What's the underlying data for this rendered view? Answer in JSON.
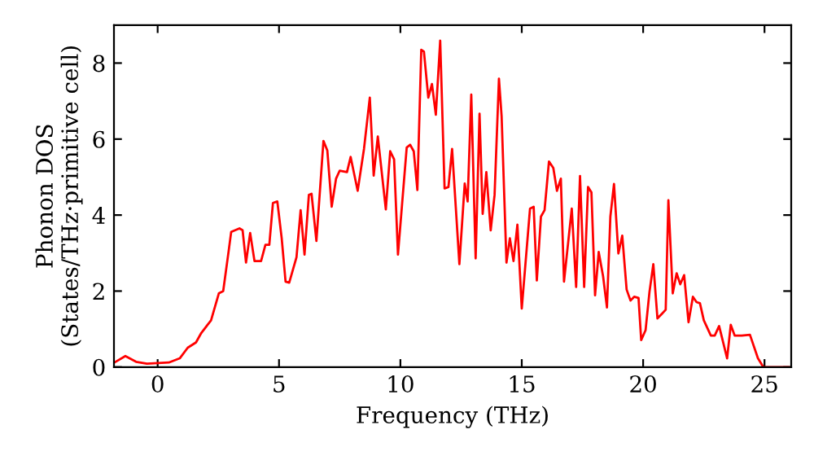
{
  "chart_data": {
    "type": "line",
    "xlabel": "Frequency (THz)",
    "ylabel": "Phonon DOS\n(States/THz·primitive cell)",
    "x": [
      -1.78,
      -1.33,
      -0.89,
      -0.44,
      0.46,
      0.91,
      1.24,
      1.58,
      1.8,
      2.2,
      2.52,
      2.7,
      2.92,
      3.03,
      3.37,
      3.5,
      3.64,
      3.81,
      3.99,
      4.26,
      4.44,
      4.6,
      4.75,
      4.93,
      5.11,
      5.27,
      5.42,
      5.72,
      5.89,
      6.05,
      6.23,
      6.34,
      6.54,
      6.83,
      6.99,
      7.17,
      7.35,
      7.5,
      7.8,
      7.95,
      8.24,
      8.5,
      8.74,
      8.9,
      9.07,
      9.4,
      9.58,
      9.74,
      9.9,
      10.26,
      10.4,
      10.55,
      10.7,
      10.86,
      10.97,
      11.15,
      11.3,
      11.46,
      11.64,
      11.82,
      11.98,
      12.13,
      12.43,
      12.65,
      12.77,
      12.92,
      13.1,
      13.26,
      13.39,
      13.54,
      13.72,
      13.88,
      14.06,
      14.17,
      14.37,
      14.51,
      14.66,
      14.82,
      15.0,
      15.34,
      15.49,
      15.62,
      15.79,
      15.94,
      16.12,
      16.3,
      16.45,
      16.61,
      16.74,
      17.06,
      17.24,
      17.4,
      17.57,
      17.73,
      17.87,
      18.02,
      18.17,
      18.35,
      18.51,
      18.65,
      18.8,
      18.98,
      19.14,
      19.32,
      19.48,
      19.63,
      19.81,
      19.92,
      20.1,
      20.26,
      20.42,
      20.59,
      20.77,
      20.93,
      21.04,
      21.22,
      21.38,
      21.53,
      21.69,
      21.87,
      22.05,
      22.2,
      22.34,
      22.5,
      22.79,
      22.95,
      23.13,
      23.46,
      23.61,
      23.77,
      24.06,
      24.4,
      24.73,
      24.95,
      26.0
    ],
    "series": [
      {
        "color": "#ff0000",
        "values": [
          0.12,
          0.29,
          0.14,
          0.09,
          0.12,
          0.23,
          0.51,
          0.65,
          0.9,
          1.23,
          1.94,
          2.0,
          3.03,
          3.56,
          3.65,
          3.6,
          2.75,
          3.53,
          2.79,
          2.79,
          3.22,
          3.22,
          4.32,
          4.36,
          3.39,
          2.25,
          2.22,
          2.89,
          4.13,
          2.96,
          4.53,
          4.56,
          3.32,
          5.95,
          5.7,
          4.22,
          4.96,
          5.17,
          5.13,
          5.53,
          4.64,
          5.74,
          7.09,
          5.04,
          6.07,
          4.15,
          5.68,
          5.47,
          2.96,
          5.78,
          5.85,
          5.68,
          4.66,
          8.35,
          8.3,
          7.09,
          7.45,
          6.64,
          8.59,
          4.7,
          4.74,
          5.74,
          2.71,
          4.83,
          4.36,
          7.17,
          2.86,
          6.67,
          4.03,
          5.13,
          3.6,
          4.53,
          7.59,
          6.6,
          2.75,
          3.39,
          2.79,
          3.75,
          1.54,
          4.17,
          4.22,
          2.28,
          3.96,
          4.13,
          5.41,
          5.24,
          4.64,
          4.96,
          2.25,
          4.17,
          2.11,
          5.03,
          2.11,
          4.74,
          4.6,
          1.89,
          3.03,
          2.39,
          1.57,
          3.96,
          4.82,
          2.99,
          3.46,
          2.04,
          1.75,
          1.85,
          1.82,
          0.71,
          0.97,
          1.97,
          2.71,
          1.28,
          1.4,
          1.51,
          4.39,
          1.94,
          2.47,
          2.18,
          2.42,
          1.18,
          1.85,
          1.71,
          1.68,
          1.23,
          0.83,
          0.83,
          1.08,
          0.23,
          1.11,
          0.83,
          0.83,
          0.85,
          0.23,
          0.0,
          0.0
        ]
      }
    ],
    "xlim": [
      -1.8,
      26.1
    ],
    "ylim": [
      0,
      9
    ],
    "xticks": [
      0,
      5,
      10,
      15,
      20,
      25
    ],
    "yticks": [
      0,
      2,
      4,
      6,
      8
    ],
    "grid": false,
    "legend": false,
    "marker": "none",
    "line_style": "solid"
  }
}
